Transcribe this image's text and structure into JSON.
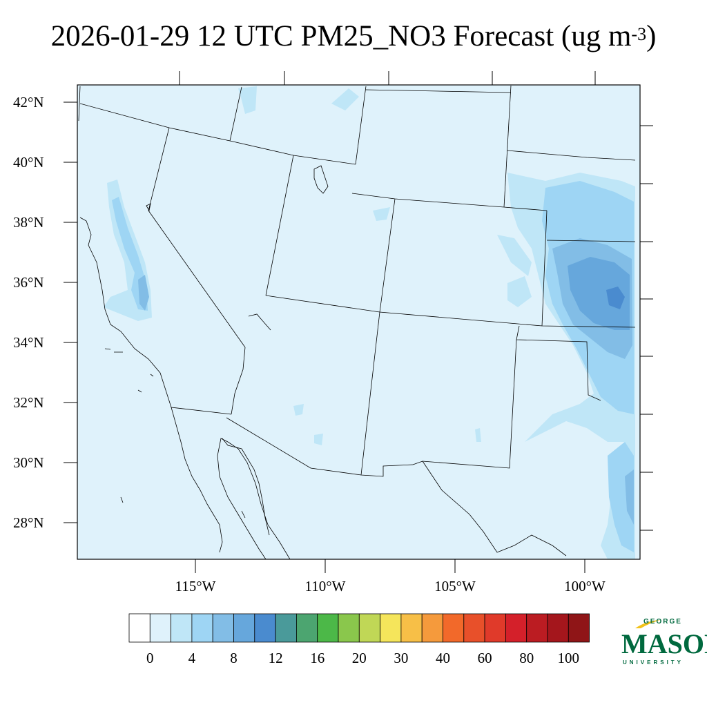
{
  "title": {
    "main": "2026-01-29 12 UTC PM25_NO3 Forecast (ug m",
    "exponent": "-3",
    "close": ")"
  },
  "map": {
    "lat_labels": [
      "42°N",
      "40°N",
      "38°N",
      "36°N",
      "34°N",
      "32°N",
      "30°N",
      "28°N"
    ],
    "lon_labels": [
      "115°W",
      "110°W",
      "105°W",
      "100°W"
    ],
    "background_color": "#dff2fb"
  },
  "colorbar": {
    "labels": [
      "0",
      "4",
      "8",
      "12",
      "16",
      "20",
      "30",
      "40",
      "60",
      "80",
      "100"
    ],
    "colors": [
      "#ffffff",
      "#dff2fb",
      "#bfe6f7",
      "#9ed5f4",
      "#82bde6",
      "#66a7dc",
      "#4a8bcf",
      "#4a9a9a",
      "#4ca570",
      "#4cb848",
      "#8ac74c",
      "#c0d756",
      "#f5e55b",
      "#f7bf47",
      "#f59a3c",
      "#f2692a",
      "#e8502a",
      "#e03a2a",
      "#d4202a",
      "#bb1c22",
      "#a4161c",
      "#8f1517"
    ]
  },
  "logo": {
    "top": "GEORGE",
    "middle": "MASON",
    "bottom": "UNIVERSITY"
  }
}
